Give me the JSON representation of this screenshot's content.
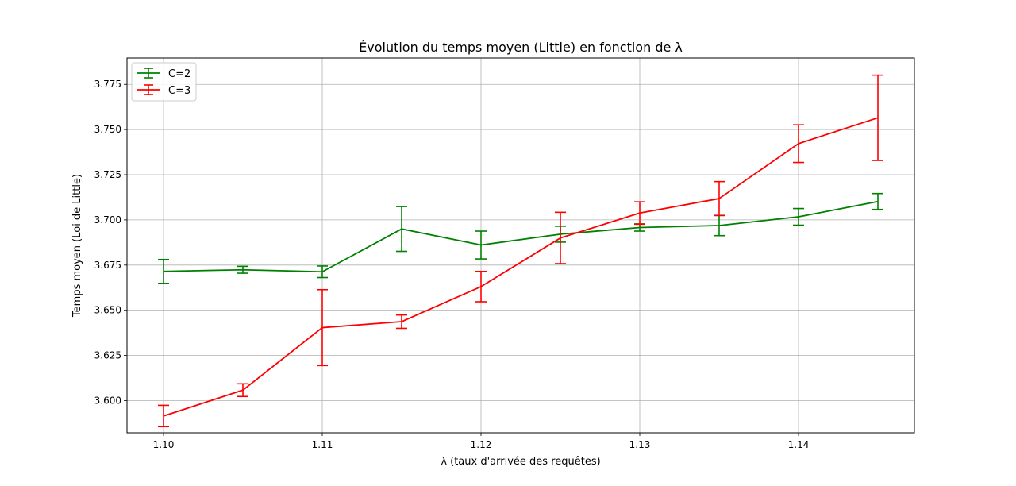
{
  "chart_data": {
    "type": "line",
    "title": "Évolution du temps moyen (Little) en fonction de λ",
    "xlabel": "λ (taux d'arrivée des requêtes)",
    "ylabel": "Temps moyen (Loi de Little)",
    "xlim": [
      1.0977,
      1.1473
    ],
    "ylim": [
      3.5822,
      3.7896
    ],
    "xticks": [
      1.1,
      1.11,
      1.12,
      1.13,
      1.14
    ],
    "xtick_labels": [
      "1.10",
      "1.11",
      "1.12",
      "1.13",
      "1.14"
    ],
    "yticks": [
      3.6,
      3.625,
      3.65,
      3.675,
      3.7,
      3.725,
      3.75,
      3.775
    ],
    "ytick_labels": [
      "3.600",
      "3.625",
      "3.650",
      "3.675",
      "3.700",
      "3.725",
      "3.750",
      "3.775"
    ],
    "grid": true,
    "legend_position": "top-left",
    "x": [
      1.1,
      1.105,
      1.11,
      1.115,
      1.12,
      1.125,
      1.13,
      1.135,
      1.14,
      1.145
    ],
    "series": [
      {
        "name": "C=2",
        "color": "#008000",
        "values": [
          3.6715,
          3.6724,
          3.6713,
          3.695,
          3.6861,
          3.6921,
          3.6958,
          3.6969,
          3.7017,
          3.7102
        ],
        "errors": [
          0.0066,
          0.0019,
          0.0032,
          0.0124,
          0.0077,
          0.0044,
          0.002,
          0.0056,
          0.0046,
          0.0044
        ]
      },
      {
        "name": "C=3",
        "color": "#ff0000",
        "values": [
          3.5915,
          3.6058,
          3.6404,
          3.6437,
          3.6631,
          3.69,
          3.7038,
          3.7118,
          3.7422,
          3.7565
        ],
        "errors": [
          0.0059,
          0.0035,
          0.021,
          0.0037,
          0.0084,
          0.0142,
          0.0062,
          0.0094,
          0.0104,
          0.0236
        ]
      }
    ]
  }
}
